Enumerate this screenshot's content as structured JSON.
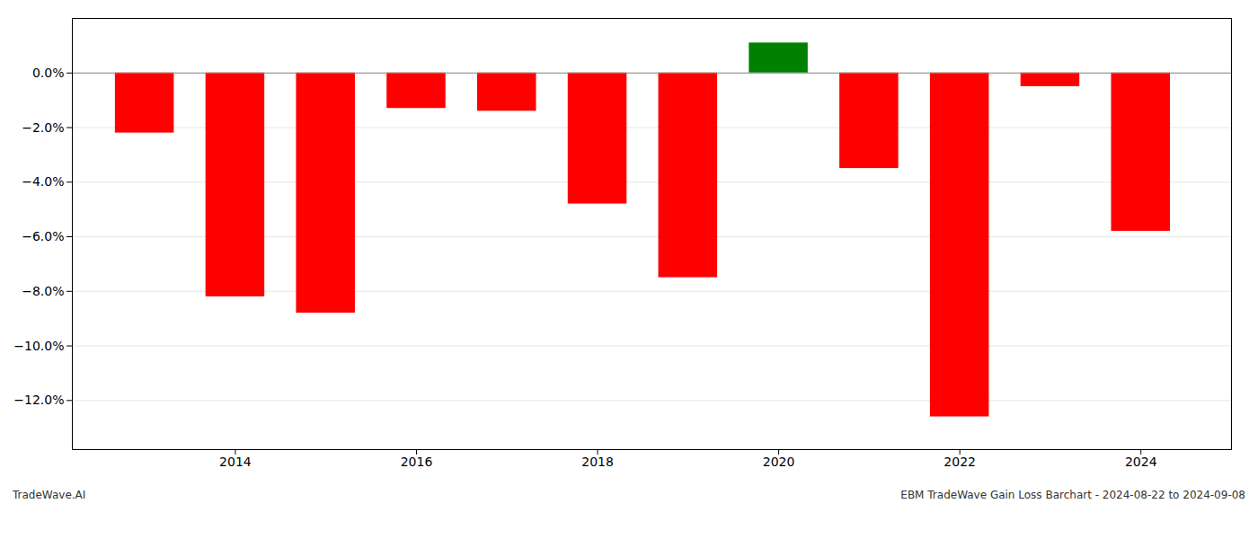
{
  "chart_data": {
    "type": "bar",
    "x": [
      2013,
      2014,
      2015,
      2016,
      2017,
      2018,
      2019,
      2020,
      2021,
      2022,
      2023,
      2024
    ],
    "values": [
      -2.2,
      -8.2,
      -8.8,
      -1.3,
      -1.4,
      -4.8,
      -7.5,
      1.1,
      -3.5,
      -12.6,
      -0.5,
      -5.8
    ],
    "colors": [
      "#ff0000",
      "#ff0000",
      "#ff0000",
      "#ff0000",
      "#ff0000",
      "#ff0000",
      "#ff0000",
      "#008000",
      "#ff0000",
      "#ff0000",
      "#ff0000",
      "#ff0000"
    ],
    "xlim": [
      2012.2,
      2025.0
    ],
    "xticks": [
      2014,
      2016,
      2018,
      2020,
      2022,
      2024
    ],
    "ylim": [
      -13.8,
      2.0
    ],
    "yticks": [
      {
        "value": 0.0,
        "label": "0.0%"
      },
      {
        "value": -2.0,
        "label": "−2.0%"
      },
      {
        "value": -4.0,
        "label": "−4.0%"
      },
      {
        "value": -6.0,
        "label": "−6.0%"
      },
      {
        "value": -8.0,
        "label": "−8.0%"
      },
      {
        "value": -10.0,
        "label": "−10.0%"
      },
      {
        "value": -12.0,
        "label": "−12.0%"
      }
    ],
    "grid": true,
    "annotations": [
      "TradeWave.AI",
      "EBM TradeWave Gain Loss Barchart - 2024-08-22 to 2024-09-08"
    ]
  }
}
